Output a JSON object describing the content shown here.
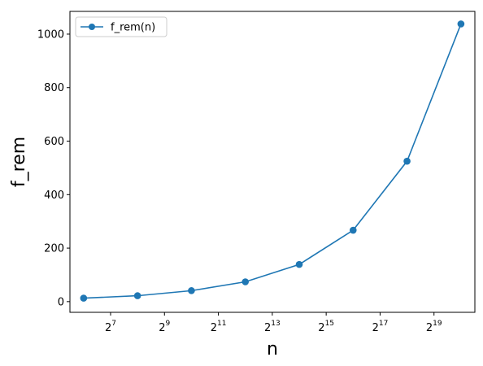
{
  "chart_data": {
    "type": "line",
    "xscale": "log2",
    "xlabel": "n",
    "ylabel": "f_rem",
    "x": [
      64,
      256,
      1024,
      4096,
      16384,
      65536,
      262144,
      1048576
    ],
    "x_ticks": [
      128,
      512,
      2048,
      8192,
      32768,
      131072,
      524288
    ],
    "x_tick_labels": [
      {
        "base": "2",
        "exp": "7"
      },
      {
        "base": "2",
        "exp": "9"
      },
      {
        "base": "2",
        "exp": "11"
      },
      {
        "base": "2",
        "exp": "13"
      },
      {
        "base": "2",
        "exp": "15"
      },
      {
        "base": "2",
        "exp": "17"
      },
      {
        "base": "2",
        "exp": "19"
      }
    ],
    "y_ticks": [
      0,
      200,
      400,
      600,
      800,
      1000
    ],
    "xlim": [
      45,
      1500000
    ],
    "ylim": [
      -40,
      1085
    ],
    "grid": false,
    "legend_position": "top-left",
    "series": [
      {
        "name": "f_rem(n)",
        "color": "#1f77b4",
        "marker": "circle",
        "values": [
          13,
          22,
          41,
          74,
          139,
          267,
          525,
          1038
        ]
      }
    ]
  }
}
